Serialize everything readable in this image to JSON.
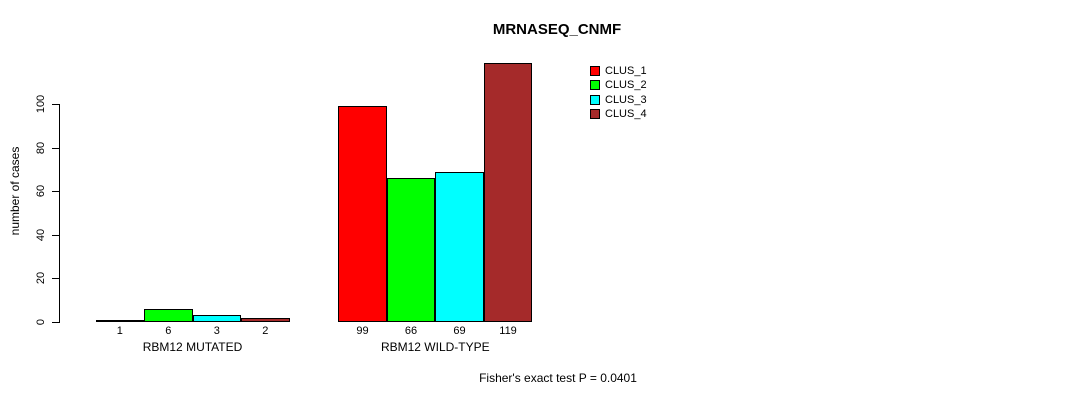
{
  "chart_data": {
    "type": "bar",
    "title": "MRNASEQ_CNMF",
    "ylabel": "number of cases",
    "xlabel": "",
    "categories": [
      "RBM12 MUTATED",
      "RBM12 WILD-TYPE"
    ],
    "series": [
      {
        "name": "CLUS_1",
        "color": "#ff0000",
        "values": [
          1,
          99
        ]
      },
      {
        "name": "CLUS_2",
        "color": "#00ff00",
        "values": [
          6,
          66
        ]
      },
      {
        "name": "CLUS_3",
        "color": "#00ffff",
        "values": [
          3,
          69
        ]
      },
      {
        "name": "CLUS_4",
        "color": "#a52a2a",
        "values": [
          2,
          119
        ]
      }
    ],
    "bar_value_labels": [
      [
        1,
        6,
        3,
        2
      ],
      [
        99,
        66,
        69,
        119
      ]
    ],
    "yticks": [
      0,
      20,
      40,
      60,
      80,
      100
    ],
    "ylim": [
      0,
      120
    ],
    "grid": false,
    "legend_position": "top-right",
    "legend_entries": [
      "CLUS_1",
      "CLUS_2",
      "CLUS_3",
      "CLUS_4"
    ],
    "annotation": "Fisher's exact test P = 0.0401"
  }
}
